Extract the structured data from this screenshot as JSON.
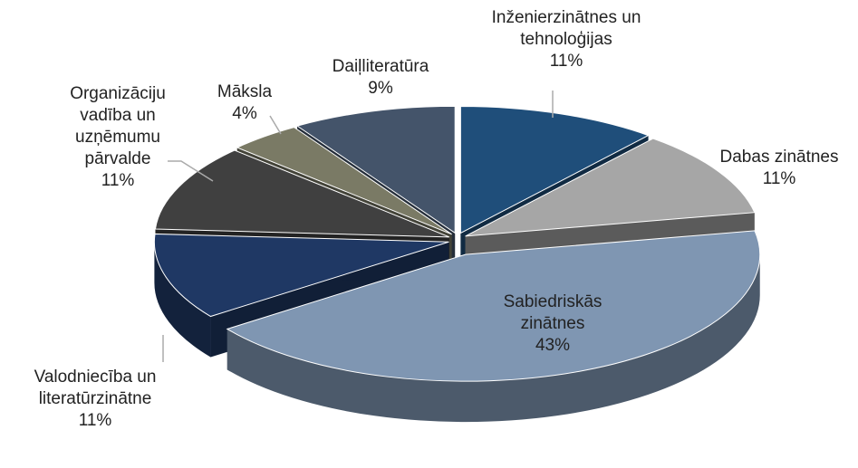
{
  "chart_data": {
    "type": "pie",
    "categories": [
      "Inženierzinātnes un tehnoloģijas",
      "Dabas zinātnes",
      "Sabiedriskās zinātnes",
      "Valodniecība un literatūrzinātne",
      "Organizāciju vadība un uzņēmumu pārvalde",
      "Māksla",
      "Daiļliteratūra"
    ],
    "values": [
      11,
      11,
      43,
      11,
      11,
      4,
      9
    ],
    "value_labels": [
      "11%",
      "11%",
      "43%",
      "11%",
      "11%",
      "4%",
      "9%"
    ],
    "colors": [
      "#1f4e7a",
      "#a6a6a6",
      "#7f96b2",
      "#1f3864",
      "#404040",
      "#7a7a65",
      "#44546a"
    ]
  }
}
